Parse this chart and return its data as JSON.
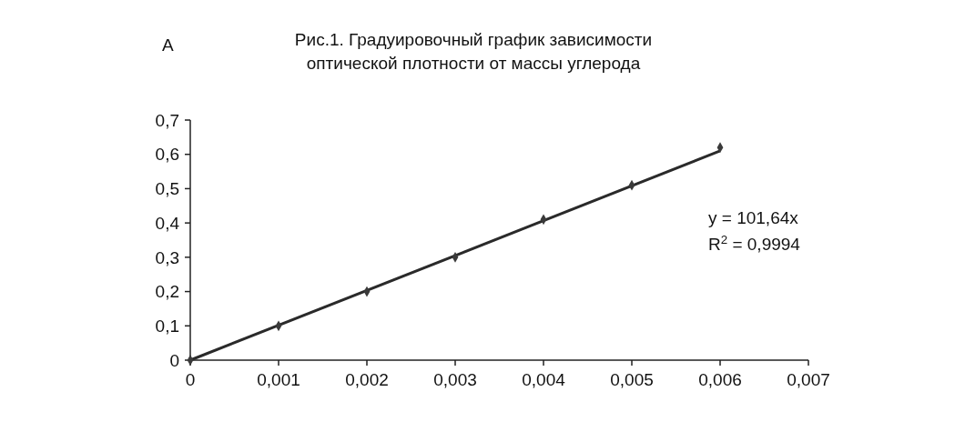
{
  "chart_data": {
    "type": "scatter",
    "title": "Рис.1. Градуировочный график зависимости оптической плотности от массы углерода",
    "annotations": [
      "А",
      "y = 101,64x",
      "R$^{2}$ = 0,9994"
    ],
    "x": [
      0,
      0.001,
      0.002,
      0.003,
      0.004,
      0.005,
      0.006
    ],
    "series": [
      {
        "color": "#3a3a3a",
        "values": [
          0,
          0.1,
          0.2,
          0.3,
          0.41,
          0.51,
          0.62
        ],
        "marker": "diamond"
      },
      {
        "type": "line",
        "color": "#2a2a2a",
        "x": [
          0,
          0.006
        ],
        "values": [
          0,
          0.61
        ],
        "line_style": "solid"
      }
    ],
    "xlim": [
      0,
      0.007
    ],
    "ylim": [
      0,
      0.7
    ],
    "xticks": [
      0,
      {
        "value": 0.001,
        "label": "0,001"
      },
      {
        "value": 0.002,
        "label": "0,002"
      },
      {
        "value": 0.003,
        "label": "0,003"
      },
      {
        "value": 0.004,
        "label": "0,004"
      },
      {
        "value": 0.005,
        "label": "0,005"
      },
      {
        "value": 0.006,
        "label": "0,006"
      },
      {
        "value": 0.007,
        "label": "0,007"
      }
    ],
    "yticks": [
      0,
      {
        "value": 0.1,
        "label": "0,1"
      },
      {
        "value": 0.2,
        "label": "0,2"
      },
      {
        "value": 0.3,
        "label": "0,3"
      },
      {
        "value": 0.4,
        "label": "0,4"
      },
      {
        "value": 0.5,
        "label": "0,5"
      },
      {
        "value": 0.6,
        "label": "0,6"
      },
      {
        "value": 0.7,
        "label": "0,7"
      }
    ],
    "grid": false
  }
}
